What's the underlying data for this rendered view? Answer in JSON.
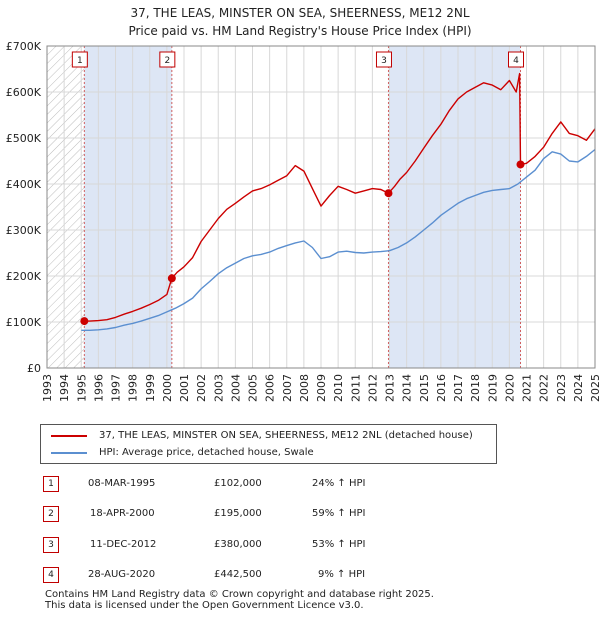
{
  "title_line1": "37, THE LEAS, MINSTER ON SEA, SHEERNESS, ME12 2NL",
  "title_line2": "Price paid vs. HM Land Registry's House Price Index (HPI)",
  "legend": {
    "property": "37, THE LEAS, MINSTER ON SEA, SHEERNESS, ME12 2NL (detached house)",
    "hpi": "HPI: Average price, detached house, Swale"
  },
  "sales_table": [
    {
      "num": "1",
      "date": "08-MAR-1995",
      "price": "£102,000",
      "hpi": "24% ↑ HPI"
    },
    {
      "num": "2",
      "date": "18-APR-2000",
      "price": "£195,000",
      "hpi": "59% ↑ HPI"
    },
    {
      "num": "3",
      "date": "11-DEC-2012",
      "price": "£380,000",
      "hpi": "53% ↑ HPI"
    },
    {
      "num": "4",
      "date": "28-AUG-2020",
      "price": "£442,500",
      "hpi": "9% ↑ HPI"
    }
  ],
  "footer": {
    "line1": "Contains HM Land Registry data © Crown copyright and database right 2025.",
    "line2": "This data is licensed under the Open Government Licence v3.0."
  },
  "colors": {
    "property": "#cc0000",
    "hpi": "#5b8fd0",
    "shade": "#dde6f5",
    "grid": "#d8d8d8"
  },
  "chart_data": {
    "type": "line",
    "title": "37, THE LEAS, MINSTER ON SEA, SHEERNESS, ME12 2NL — Price paid vs. HM Land Registry's House Price Index (HPI)",
    "xlabel": "",
    "ylabel": "",
    "xlim": [
      1993,
      2025
    ],
    "ylim": [
      0,
      700000
    ],
    "y_ticks": [
      0,
      100000,
      200000,
      300000,
      400000,
      500000,
      600000,
      700000
    ],
    "y_tick_labels": [
      "£0",
      "£100K",
      "£200K",
      "£300K",
      "£400K",
      "£500K",
      "£600K",
      "£700K"
    ],
    "x_ticks": [
      1993,
      1994,
      1995,
      1996,
      1997,
      1998,
      1999,
      2000,
      2001,
      2002,
      2003,
      2004,
      2005,
      2006,
      2007,
      2008,
      2009,
      2010,
      2011,
      2012,
      2013,
      2014,
      2015,
      2016,
      2017,
      2018,
      2019,
      2020,
      2021,
      2022,
      2023,
      2024,
      2025
    ],
    "x_tick_labels": [
      "1993",
      "1994",
      "1995",
      "1996",
      "1997",
      "1998",
      "1999",
      "2000",
      "2001",
      "2002",
      "2003",
      "2004",
      "2005",
      "2006",
      "2007",
      "2008",
      "2009",
      "2010",
      "2011",
      "2012",
      "2013",
      "2014",
      "2015",
      "2016",
      "2017",
      "2018",
      "2019",
      "2020",
      "2021",
      "2022",
      "2023",
      "2024",
      "2025"
    ],
    "grid": true,
    "legend_position": "below",
    "sales": [
      {
        "label": "1",
        "x": 1995.18,
        "y": 102000
      },
      {
        "label": "2",
        "x": 2000.29,
        "y": 195000
      },
      {
        "label": "3",
        "x": 2012.94,
        "y": 380000
      },
      {
        "label": "4",
        "x": 2020.65,
        "y": 442500
      }
    ],
    "shaded_ranges": [
      [
        1995.18,
        2000.29
      ],
      [
        2012.94,
        2020.65
      ]
    ],
    "hatched_range": [
      1993,
      1995.18
    ],
    "series": [
      {
        "name": "37, THE LEAS, MINSTER ON SEA, SHEERNESS, ME12 2NL (detached house)",
        "color": "#cc0000",
        "x": [
          1995.18,
          1995.5,
          1996,
          1996.5,
          1997,
          1997.5,
          1998,
          1998.5,
          1999,
          1999.5,
          2000,
          2000.29,
          2000.6,
          2001,
          2001.5,
          2002,
          2002.5,
          2003,
          2003.5,
          2004,
          2004.5,
          2005,
          2005.5,
          2006,
          2006.5,
          2007,
          2007.5,
          2008,
          2008.5,
          2009,
          2009.5,
          2010,
          2010.5,
          2011,
          2011.5,
          2012,
          2012.5,
          2012.94,
          2013.3,
          2013.6,
          2014,
          2014.5,
          2015,
          2015.5,
          2016,
          2016.5,
          2017,
          2017.5,
          2018,
          2018.5,
          2019,
          2019.5,
          2020,
          2020.4,
          2020.6,
          2020.65,
          2021,
          2021.5,
          2022,
          2022.5,
          2023,
          2023.5,
          2024,
          2024.5,
          2025
        ],
        "y": [
          102000,
          102000,
          103000,
          105000,
          110000,
          117000,
          123000,
          130000,
          138000,
          147000,
          160000,
          195000,
          208000,
          220000,
          240000,
          275000,
          300000,
          325000,
          345000,
          358000,
          372000,
          385000,
          390000,
          398000,
          408000,
          418000,
          440000,
          428000,
          390000,
          352000,
          375000,
          395000,
          388000,
          380000,
          385000,
          390000,
          388000,
          380000,
          395000,
          410000,
          425000,
          450000,
          478000,
          505000,
          530000,
          560000,
          585000,
          600000,
          610000,
          620000,
          615000,
          605000,
          625000,
          600000,
          640000,
          442500,
          445000,
          460000,
          480000,
          510000,
          535000,
          510000,
          505000,
          495000,
          520000
        ]
      },
      {
        "name": "HPI: Average price, detached house, Swale",
        "color": "#5b8fd0",
        "x": [
          1995,
          1995.5,
          1996,
          1996.5,
          1997,
          1997.5,
          1998,
          1998.5,
          1999,
          1999.5,
          2000,
          2000.5,
          2001,
          2001.5,
          2002,
          2002.5,
          2003,
          2003.5,
          2004,
          2004.5,
          2005,
          2005.5,
          2006,
          2006.5,
          2007,
          2007.5,
          2008,
          2008.5,
          2009,
          2009.5,
          2010,
          2010.5,
          2011,
          2011.5,
          2012,
          2012.5,
          2013,
          2013.5,
          2014,
          2014.5,
          2015,
          2015.5,
          2016,
          2016.5,
          2017,
          2017.5,
          2018,
          2018.5,
          2019,
          2019.5,
          2020,
          2020.5,
          2021,
          2021.5,
          2022,
          2022.5,
          2023,
          2023.5,
          2024,
          2024.5,
          2025
        ],
        "y": [
          82000,
          82000,
          83000,
          85000,
          88000,
          93000,
          97000,
          102000,
          108000,
          114000,
          122000,
          130000,
          140000,
          152000,
          172000,
          188000,
          205000,
          218000,
          228000,
          238000,
          244000,
          247000,
          252000,
          260000,
          266000,
          272000,
          276000,
          262000,
          238000,
          242000,
          252000,
          254000,
          251000,
          250000,
          252000,
          253000,
          255000,
          262000,
          272000,
          285000,
          300000,
          315000,
          332000,
          345000,
          358000,
          368000,
          375000,
          382000,
          386000,
          388000,
          390000,
          400000,
          415000,
          430000,
          455000,
          470000,
          465000,
          450000,
          448000,
          460000,
          475000
        ]
      }
    ]
  }
}
